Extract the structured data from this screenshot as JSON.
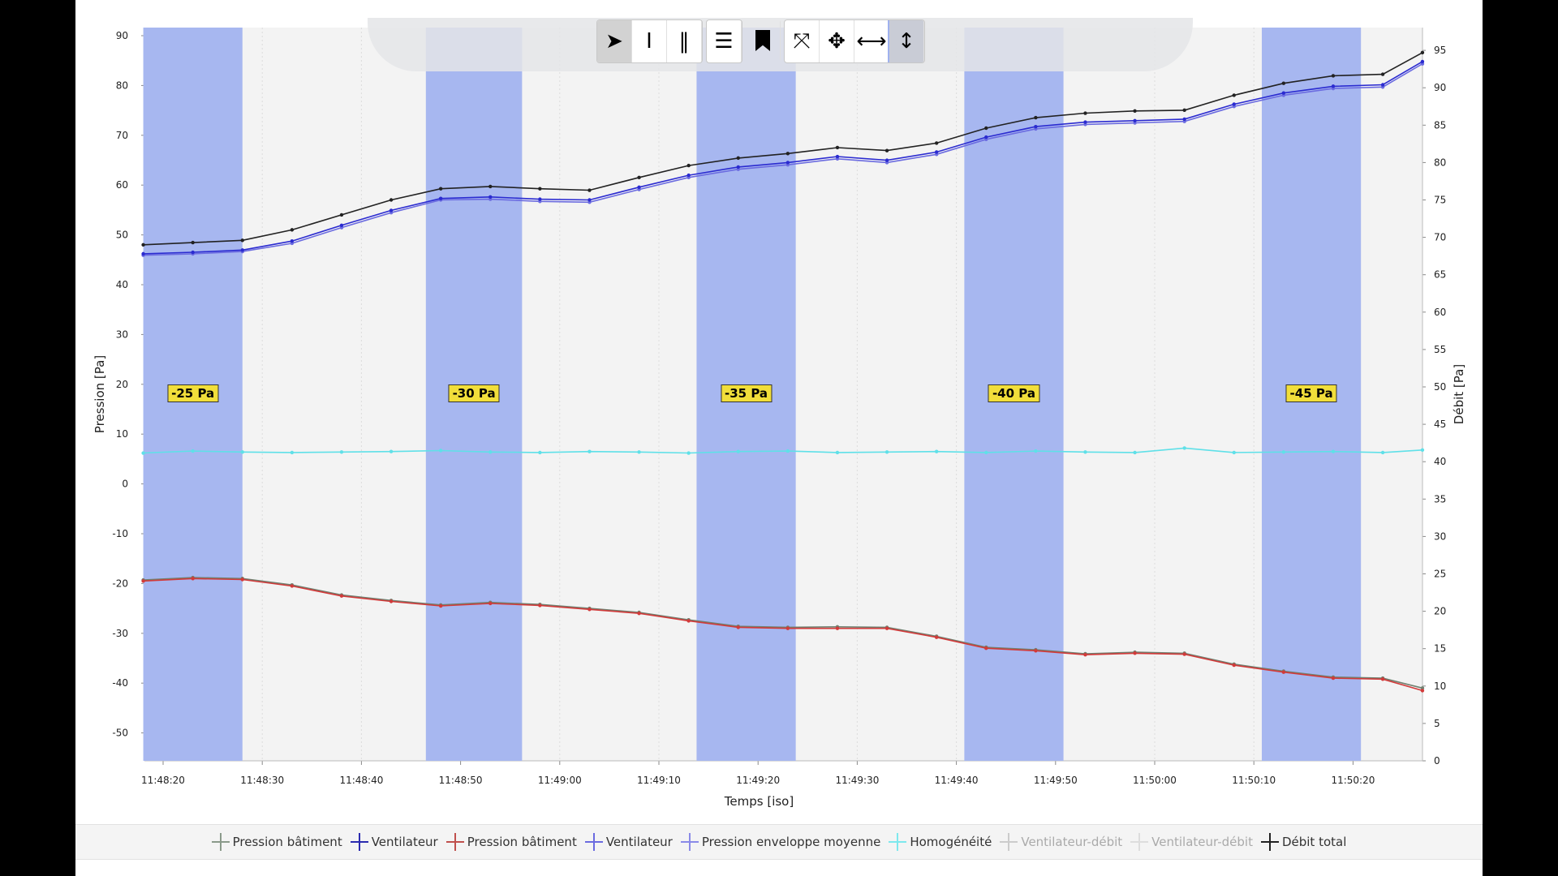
{
  "toolbar": {
    "buttons": [
      {
        "name": "pointer-icon",
        "glyph": "➤",
        "state": "active"
      },
      {
        "name": "text-cursor-icon",
        "glyph": "I"
      },
      {
        "name": "vertical-lines-icon",
        "glyph": "‖"
      },
      {
        "name": "horizontal-lines-icon",
        "glyph": "☰"
      },
      {
        "name": "bookmark-icon",
        "glyph": "🔖"
      },
      {
        "name": "zoom-fit-icon",
        "glyph": "⤧"
      },
      {
        "name": "pan-icon",
        "glyph": "✥"
      },
      {
        "name": "horizontal-zoom-icon",
        "glyph": "⟷"
      },
      {
        "name": "vertical-zoom-icon",
        "glyph": "↕",
        "state": "selected"
      }
    ]
  },
  "chart_data": {
    "type": "line",
    "xlabel": "Temps [iso]",
    "ylabel_left": "Pression [Pa]",
    "ylabel_right": "Débit [Pa]",
    "x_units": "seconds after 11:48:20",
    "xlim": [
      -2,
      127
    ],
    "ylim_left": [
      -55.6,
      91.6
    ],
    "ylim_right": [
      0,
      98
    ],
    "x_ticks": [
      "11:48:20",
      "11:48:30",
      "11:48:40",
      "11:48:50",
      "11:49:00",
      "11:49:10",
      "11:49:20",
      "11:49:30",
      "11:49:40",
      "11:49:50",
      "11:50:00",
      "11:50:10",
      "11:50:20"
    ],
    "y_ticks_left": [
      90,
      80,
      70,
      60,
      50,
      40,
      30,
      20,
      10,
      0,
      -10,
      -20,
      -30,
      -40,
      -50
    ],
    "y_ticks_right": [
      95,
      90,
      85,
      80,
      75,
      70,
      65,
      60,
      55,
      50,
      45,
      40,
      35,
      30,
      25,
      20,
      15,
      10,
      5,
      0
    ],
    "grid": true,
    "bands": [
      {
        "start": -2,
        "end": 8,
        "label": "-25 Pa"
      },
      {
        "start": 26.5,
        "end": 36.2,
        "label": "-30 Pa"
      },
      {
        "start": 53.8,
        "end": 63.8,
        "label": "-35 Pa"
      },
      {
        "start": 80.8,
        "end": 90.8,
        "label": "-40 Pa"
      },
      {
        "start": 110.8,
        "end": 120.8,
        "label": "-45 Pa"
      }
    ],
    "band_color": "#a7b7f0",
    "x": [
      -2,
      3,
      8,
      13,
      18,
      23,
      28,
      33,
      38,
      43,
      48,
      53,
      58,
      63,
      68,
      73,
      78,
      83,
      88,
      93,
      98,
      103,
      108,
      113,
      118,
      123,
      127
    ],
    "series": [
      {
        "name": "Débit total",
        "axis": "right",
        "color": "#222222",
        "values": [
          69,
          69.3,
          69.6,
          71,
          73,
          75,
          76.5,
          76.8,
          76.5,
          76.3,
          78,
          79.6,
          80.6,
          81.2,
          82,
          81.6,
          82.6,
          84.6,
          86,
          86.6,
          86.9,
          87,
          89,
          90.6,
          91.6,
          91.8,
          94.7
        ]
      },
      {
        "name": "Ventilateur",
        "axis": "right",
        "color": "#2b2bd0",
        "values": [
          67.8,
          68,
          68.3,
          69.5,
          71.6,
          73.6,
          75.2,
          75.4,
          75.1,
          75,
          76.7,
          78.3,
          79.4,
          80,
          80.8,
          80.3,
          81.4,
          83.4,
          84.8,
          85.4,
          85.6,
          85.8,
          87.8,
          89.3,
          90.2,
          90.4,
          93.5
        ]
      },
      {
        "name": "Pression enveloppe moyenne",
        "axis": "right",
        "color": "#6b6be0",
        "values": [
          67.6,
          67.8,
          68.1,
          69.2,
          71.3,
          73.3,
          75,
          75.1,
          74.8,
          74.7,
          76.4,
          78,
          79.1,
          79.7,
          80.5,
          80,
          81.1,
          83.1,
          84.5,
          85.1,
          85.3,
          85.5,
          87.5,
          89,
          89.9,
          90.1,
          93.2
        ]
      },
      {
        "name": "Homogénéité",
        "axis": "left",
        "color": "#5fe0e8",
        "values": [
          6.2,
          6.6,
          6.4,
          6.3,
          6.4,
          6.5,
          6.7,
          6.4,
          6.3,
          6.5,
          6.4,
          6.2,
          6.5,
          6.6,
          6.3,
          6.4,
          6.5,
          6.3,
          6.6,
          6.4,
          6.3,
          7.2,
          6.3,
          6.4,
          6.5,
          6.3,
          6.8
        ]
      },
      {
        "name": "Pression bâtiment",
        "axis": "left",
        "color": "#d23a3a",
        "values": [
          -19.5,
          -19,
          -19.2,
          -20.5,
          -22.5,
          -23.6,
          -24.5,
          -24,
          -24.4,
          -25.2,
          -26,
          -27.5,
          -28.8,
          -29,
          -29,
          -29,
          -30.8,
          -33,
          -33.5,
          -34.3,
          -34,
          -34.2,
          -36.4,
          -37.8,
          -39,
          -39.2,
          -41.5
        ]
      },
      {
        "name": "Pression bâtiment (gris)",
        "axis": "left",
        "color": "#708070",
        "values": [
          -19.3,
          -18.8,
          -19,
          -20.3,
          -22.3,
          -23.4,
          -24.3,
          -23.8,
          -24.2,
          -25,
          -25.8,
          -27.3,
          -28.6,
          -28.8,
          -28.7,
          -28.8,
          -30.6,
          -32.8,
          -33.3,
          -34.1,
          -33.8,
          -34,
          -36.2,
          -37.6,
          -38.8,
          -39,
          -41
        ]
      }
    ],
    "legend": [
      {
        "label": "Pression bâtiment",
        "color": "#8a9a8a"
      },
      {
        "label": "Ventilateur",
        "color": "#2b2bb0"
      },
      {
        "label": "Pression bâtiment",
        "color": "#c0504d"
      },
      {
        "label": "Ventilateur",
        "color": "#6b6be0"
      },
      {
        "label": "Pression enveloppe moyenne",
        "color": "#8a8ae8"
      },
      {
        "label": "Homogénéité",
        "color": "#7ee8ee"
      },
      {
        "label": "Ventilateur-débit",
        "color": "#cccccc",
        "dim": true
      },
      {
        "label": "Ventilateur-débit",
        "color": "#dddddd",
        "dim": true
      },
      {
        "label": "Débit total",
        "color": "#222222"
      }
    ],
    "legend_position": "bottom"
  }
}
